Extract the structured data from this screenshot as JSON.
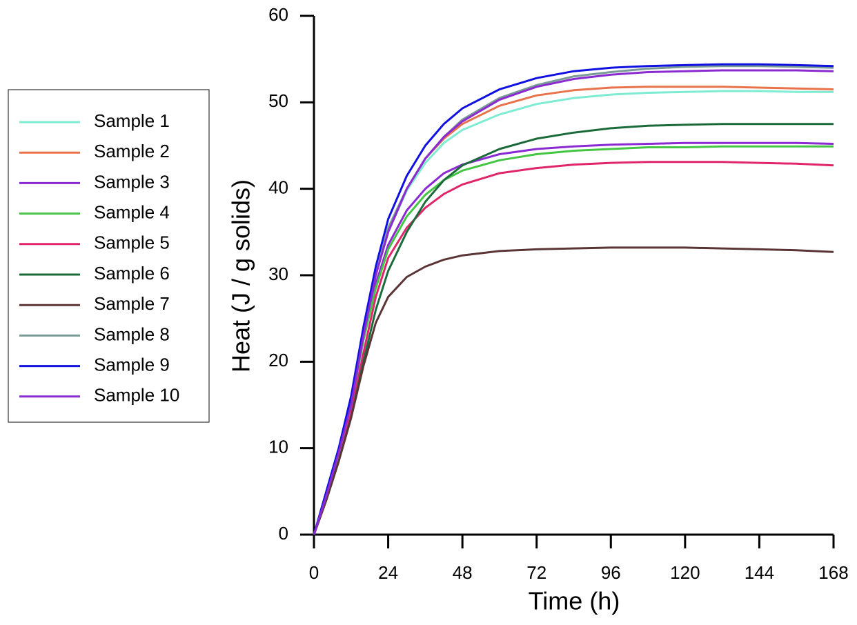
{
  "chart_data": {
    "type": "line",
    "x_label": "Time (h)",
    "y_label": "Heat (J / g solids)",
    "x": [
      0,
      4,
      8,
      12,
      16,
      20,
      24,
      30,
      36,
      42,
      48,
      60,
      72,
      84,
      96,
      108,
      120,
      132,
      144,
      156,
      168
    ],
    "xlim": [
      0,
      168
    ],
    "xticks": [
      0,
      24,
      48,
      72,
      96,
      120,
      144,
      168
    ],
    "ylim": [
      0,
      60
    ],
    "yticks": [
      0,
      10,
      20,
      30,
      40,
      50,
      60
    ],
    "legend": "left",
    "series": [
      {
        "name": "Sample 1",
        "color": "#7eecd2",
        "values": [
          0,
          4.5,
          9.5,
          15,
          23,
          30,
          35,
          39.8,
          43,
          45.3,
          46.8,
          48.6,
          49.8,
          50.5,
          50.9,
          51.1,
          51.2,
          51.3,
          51.3,
          51.2,
          51.2
        ]
      },
      {
        "name": "Sample 2",
        "color": "#e8734a",
        "values": [
          0,
          4.5,
          9.5,
          15,
          23,
          30,
          35,
          40,
          43.5,
          45.8,
          47.5,
          49.6,
          50.8,
          51.4,
          51.7,
          51.8,
          51.8,
          51.8,
          51.7,
          51.6,
          51.5
        ]
      },
      {
        "name": "Sample 3",
        "color": "#8a2ad0",
        "values": [
          0,
          4.5,
          9.5,
          15,
          22.5,
          29,
          33.5,
          37.5,
          40,
          41.8,
          42.8,
          44,
          44.6,
          44.9,
          45.1,
          45.2,
          45.3,
          45.3,
          45.3,
          45.3,
          45.2
        ]
      },
      {
        "name": "Sample 4",
        "color": "#44c644",
        "values": [
          0,
          4.5,
          9.5,
          15,
          22.5,
          28.5,
          33,
          36.8,
          39.3,
          41,
          42.1,
          43.3,
          44,
          44.4,
          44.6,
          44.8,
          44.8,
          44.9,
          44.9,
          44.9,
          44.9
        ]
      },
      {
        "name": "Sample 5",
        "color": "#e0266a",
        "values": [
          0,
          4,
          8.5,
          14,
          21,
          27.5,
          32,
          35.5,
          37.8,
          39.4,
          40.5,
          41.8,
          42.4,
          42.8,
          43,
          43.1,
          43.1,
          43.1,
          43,
          42.9,
          42.7
        ]
      },
      {
        "name": "Sample 6",
        "color": "#1b6b3a",
        "values": [
          0,
          4,
          8.5,
          13.5,
          20,
          26,
          30.5,
          35,
          38.5,
          41,
          42.7,
          44.6,
          45.8,
          46.5,
          47,
          47.3,
          47.4,
          47.5,
          47.5,
          47.5,
          47.5
        ]
      },
      {
        "name": "Sample 7",
        "color": "#5b3535",
        "values": [
          0,
          4,
          8.5,
          13.5,
          19.5,
          24.5,
          27.5,
          29.8,
          31,
          31.8,
          32.3,
          32.8,
          33,
          33.1,
          33.2,
          33.2,
          33.2,
          33.1,
          33,
          32.9,
          32.7
        ]
      },
      {
        "name": "Sample 8",
        "color": "#7a9a98",
        "values": [
          0,
          4.5,
          9.5,
          15,
          23,
          30,
          35.5,
          40,
          43.5,
          46,
          48,
          50.5,
          52,
          53,
          53.5,
          53.9,
          54.1,
          54.2,
          54.2,
          54.1,
          54
        ]
      },
      {
        "name": "Sample 9",
        "color": "#1010e0",
        "values": [
          0,
          5,
          10,
          16,
          24,
          31,
          36.5,
          41.5,
          45,
          47.5,
          49.3,
          51.5,
          52.8,
          53.6,
          54,
          54.2,
          54.3,
          54.4,
          54.4,
          54.3,
          54.2
        ]
      },
      {
        "name": "Sample 10",
        "color": "#8a2ad0",
        "values": [
          0,
          4.5,
          9.5,
          15,
          23,
          30,
          35,
          40,
          43.5,
          46,
          47.8,
          50.3,
          51.8,
          52.7,
          53.2,
          53.5,
          53.6,
          53.7,
          53.7,
          53.7,
          53.6
        ]
      }
    ]
  }
}
